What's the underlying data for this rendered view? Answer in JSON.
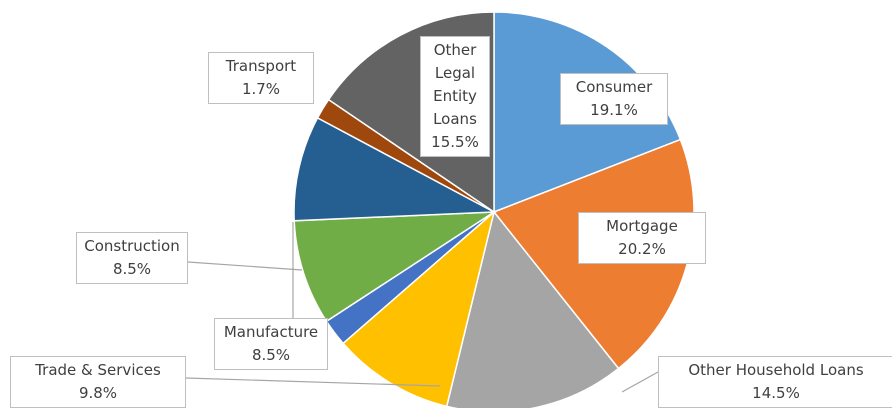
{
  "chart_data": {
    "type": "pie",
    "categories": [
      "Consumer",
      "Mortgage",
      "Other Household Loans",
      "Trade & Services",
      null,
      "Construction",
      "Manufacture",
      "Transport",
      "Other Legal Entity Loans"
    ],
    "values": [
      19.1,
      20.2,
      14.5,
      9.8,
      2.2,
      8.5,
      8.5,
      1.7,
      15.5
    ],
    "value_labels": [
      "19.1%",
      "20.2%",
      "14.5%",
      "9.8%",
      null,
      "8.5%",
      "8.5%",
      "1.7%",
      "15.5%"
    ],
    "colors": [
      "#5b9bd5",
      "#ed7d31",
      "#a5a5a5",
      "#ffc000",
      "#4472c4",
      "#70ad47",
      "#255e91",
      "#9e480e",
      "#636363"
    ]
  }
}
